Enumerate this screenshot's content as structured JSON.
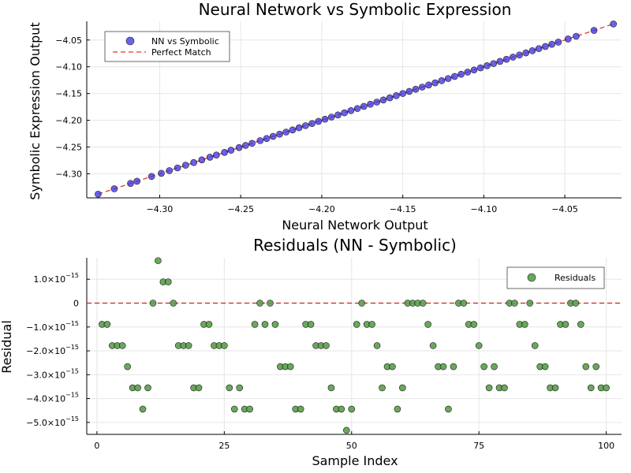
{
  "chart_data": [
    {
      "type": "scatter",
      "title": "Neural Network vs Symbolic Expression",
      "xlabel": "Neural Network Output",
      "ylabel": "Symbolic Expression Output",
      "xlim": [
        -4.345,
        -4.015
      ],
      "ylim": [
        -4.345,
        -4.015
      ],
      "xticks": [
        -4.3,
        -4.25,
        -4.2,
        -4.15,
        -4.1,
        -4.05
      ],
      "xtick_labels": [
        "−4.30",
        "−4.25",
        "−4.20",
        "−4.15",
        "−4.10",
        "−4.05"
      ],
      "yticks": [
        -4.3,
        -4.25,
        -4.2,
        -4.15,
        -4.1,
        -4.05
      ],
      "ytick_labels": [
        "−4.30",
        "−4.25",
        "−4.20",
        "−4.15",
        "−4.10",
        "−4.05"
      ],
      "grid": true,
      "legend_position": "top-left",
      "series": [
        {
          "name": "NN vs Symbolic",
          "kind": "scatter",
          "color": "#3a2ee6",
          "x": [
            -4.338,
            -4.328,
            -4.318,
            -4.314,
            -4.305,
            -4.299,
            -4.294,
            -4.289,
            -4.284,
            -4.279,
            -4.274,
            -4.269,
            -4.265,
            -4.26,
            -4.256,
            -4.251,
            -4.247,
            -4.243,
            -4.238,
            -4.234,
            -4.23,
            -4.226,
            -4.222,
            -4.218,
            -4.214,
            -4.21,
            -4.206,
            -4.202,
            -4.198,
            -4.194,
            -4.19,
            -4.186,
            -4.182,
            -4.178,
            -4.174,
            -4.17,
            -4.166,
            -4.162,
            -4.158,
            -4.154,
            -4.15,
            -4.146,
            -4.142,
            -4.138,
            -4.134,
            -4.13,
            -4.126,
            -4.122,
            -4.118,
            -4.114,
            -4.11,
            -4.106,
            -4.102,
            -4.098,
            -4.094,
            -4.09,
            -4.086,
            -4.082,
            -4.078,
            -4.074,
            -4.07,
            -4.066,
            -4.062,
            -4.058,
            -4.054,
            -4.048,
            -4.043,
            -4.032,
            -4.02
          ],
          "y": [
            -4.338,
            -4.328,
            -4.318,
            -4.314,
            -4.305,
            -4.299,
            -4.294,
            -4.289,
            -4.284,
            -4.279,
            -4.274,
            -4.269,
            -4.265,
            -4.26,
            -4.256,
            -4.251,
            -4.247,
            -4.243,
            -4.238,
            -4.234,
            -4.23,
            -4.226,
            -4.222,
            -4.218,
            -4.214,
            -4.21,
            -4.206,
            -4.202,
            -4.198,
            -4.194,
            -4.19,
            -4.186,
            -4.182,
            -4.178,
            -4.174,
            -4.17,
            -4.166,
            -4.162,
            -4.158,
            -4.154,
            -4.15,
            -4.146,
            -4.142,
            -4.138,
            -4.134,
            -4.13,
            -4.126,
            -4.122,
            -4.118,
            -4.114,
            -4.11,
            -4.106,
            -4.102,
            -4.098,
            -4.094,
            -4.09,
            -4.086,
            -4.082,
            -4.078,
            -4.074,
            -4.07,
            -4.066,
            -4.062,
            -4.058,
            -4.054,
            -4.048,
            -4.043,
            -4.032,
            -4.02
          ]
        },
        {
          "name": "Perfect Match",
          "kind": "dashed-line",
          "color": "#e8352b",
          "x": [
            -4.338,
            -4.02
          ],
          "y": [
            -4.338,
            -4.02
          ]
        }
      ]
    },
    {
      "type": "scatter",
      "title": "Residuals (NN - Symbolic)",
      "xlabel": "Sample Index",
      "ylabel": "Residual",
      "xlim": [
        -2,
        103
      ],
      "ylim": [
        -5.5e-15,
        1.9e-15
      ],
      "xticks": [
        0,
        25,
        50,
        75,
        100
      ],
      "xtick_labels": [
        "0",
        "25",
        "50",
        "75",
        "100"
      ],
      "yticks": [
        1e-15,
        0,
        -1e-15,
        -2e-15,
        -3e-15,
        -4e-15,
        -5e-15
      ],
      "ytick_mantissas": [
        "1.0×10",
        "0",
        "−1.0×10",
        "−2.0×10",
        "−3.0×10",
        "−4.0×10",
        "−5.0×10"
      ],
      "ytick_exponent": "−15",
      "grid": true,
      "legend_position": "top-right",
      "reference_line": {
        "y": 0,
        "color": "#cc2222",
        "style": "dashed"
      },
      "series": [
        {
          "name": "Residuals",
          "color": "#5a9e4a",
          "x": [
            1,
            2,
            3,
            4,
            5,
            6,
            7,
            8,
            9,
            10,
            11,
            12,
            13,
            14,
            15,
            16,
            17,
            18,
            19,
            20,
            21,
            22,
            23,
            24,
            25,
            26,
            27,
            28,
            29,
            30,
            31,
            32,
            33,
            34,
            35,
            36,
            37,
            38,
            39,
            40,
            41,
            42,
            43,
            44,
            45,
            46,
            47,
            48,
            49,
            50,
            51,
            52,
            53,
            54,
            55,
            56,
            57,
            58,
            59,
            60,
            61,
            62,
            63,
            64,
            65,
            66,
            67,
            68,
            69,
            70,
            71,
            72,
            73,
            74,
            75,
            76,
            77,
            78,
            79,
            80,
            81,
            82,
            83,
            84,
            85,
            86,
            87,
            88,
            89,
            90,
            91,
            92,
            93,
            94,
            95,
            96,
            97,
            98,
            99,
            100
          ],
          "y": [
            -8.9e-16,
            -8.9e-16,
            -1.78e-15,
            -1.78e-15,
            -1.78e-15,
            -2.66e-15,
            -3.55e-15,
            -3.55e-15,
            -4.44e-15,
            -3.55e-15,
            0,
            1.78e-15,
            8.9e-16,
            8.9e-16,
            0,
            -1.78e-15,
            -1.78e-15,
            -1.78e-15,
            -3.55e-15,
            -3.55e-15,
            -8.9e-16,
            -8.9e-16,
            -1.78e-15,
            -1.78e-15,
            -1.78e-15,
            -3.55e-15,
            -4.44e-15,
            -3.55e-15,
            -4.44e-15,
            -4.44e-15,
            -8.9e-16,
            0,
            -8.9e-16,
            0,
            -8.9e-16,
            -2.66e-15,
            -2.66e-15,
            -2.66e-15,
            -4.44e-15,
            -4.44e-15,
            -8.9e-16,
            -8.9e-16,
            -1.78e-15,
            -1.78e-15,
            -1.78e-15,
            -3.55e-15,
            -4.44e-15,
            -4.44e-15,
            -5.33e-15,
            -4.44e-15,
            -8.9e-16,
            0,
            -8.9e-16,
            -8.9e-16,
            -1.78e-15,
            -3.55e-15,
            -2.66e-15,
            -2.66e-15,
            -4.44e-15,
            -3.55e-15,
            0,
            0,
            0,
            0,
            -8.9e-16,
            -1.78e-15,
            -2.66e-15,
            -2.66e-15,
            -4.44e-15,
            -2.66e-15,
            0,
            0,
            -8.9e-16,
            -8.9e-16,
            -1.78e-15,
            -2.66e-15,
            -3.55e-15,
            -2.66e-15,
            -3.55e-15,
            -3.55e-15,
            0,
            0,
            -8.9e-16,
            -8.9e-16,
            0,
            -1.78e-15,
            -2.66e-15,
            -2.66e-15,
            -3.55e-15,
            -3.55e-15,
            -8.9e-16,
            -8.9e-16,
            0,
            0,
            -8.9e-16,
            -2.66e-15,
            -3.55e-15,
            -2.66e-15,
            -3.55e-15,
            -3.55e-15
          ]
        }
      ]
    }
  ]
}
